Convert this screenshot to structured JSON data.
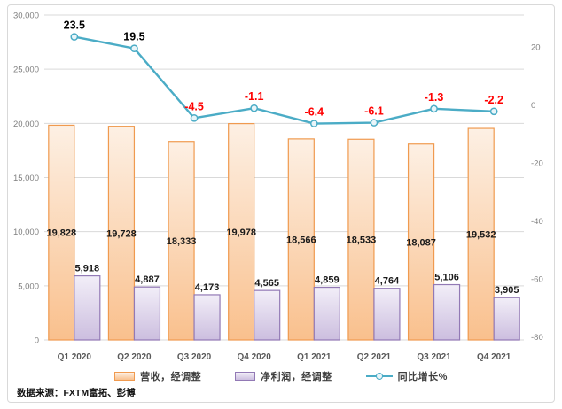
{
  "source_note": "数据来源：FXTM富拓、彭博",
  "chart_data": {
    "type": "combo-bar-line",
    "title": "",
    "categories": [
      "Q1 2020",
      "Q2 2020",
      "Q3 2020",
      "Q4 2020",
      "Q1 2021",
      "Q2 2021",
      "Q3 2021",
      "Q4 2021"
    ],
    "series": [
      {
        "name": "营收，经调整",
        "type": "bar",
        "axis": "left",
        "values": [
          19828,
          19728,
          18333,
          19978,
          18566,
          18533,
          18087,
          19532
        ],
        "fill_top": "#FDF0E4",
        "fill_bottom": "#F9C08D",
        "border": "#F09A4F",
        "label_position": "center",
        "label_color": "#1a1a1a"
      },
      {
        "name": "净利润，经调整",
        "type": "bar",
        "axis": "left",
        "values": [
          5918,
          4887,
          4173,
          4565,
          4859,
          4764,
          5106,
          3905
        ],
        "fill_top": "#F2EEF8",
        "fill_bottom": "#CCBEDF",
        "border": "#9279B5",
        "label_position": "above",
        "label_color": "#1a1a1a"
      },
      {
        "name": "同比增长%",
        "type": "line",
        "axis": "right",
        "values": [
          23.5,
          19.5,
          -4.5,
          -1.1,
          -6.4,
          -6.1,
          -1.3,
          -2.2
        ],
        "color": "#4BACC6",
        "marker_fill": "#E9F5F9",
        "label_color_positive": "#000000",
        "label_color_negative": "#FF0000"
      }
    ],
    "left_axis": {
      "min": 0,
      "max": 30000,
      "step": 5000,
      "format": "comma"
    },
    "right_axis": {
      "min": -81,
      "max": 31,
      "ticks": [
        20,
        0,
        -20,
        -40,
        -60,
        -80
      ]
    },
    "grid": "horizontal",
    "gridline_color": "#D9D9D9",
    "axis_label_color": "#808080",
    "category_label_color": "#595959",
    "legend_position": "bottom"
  }
}
